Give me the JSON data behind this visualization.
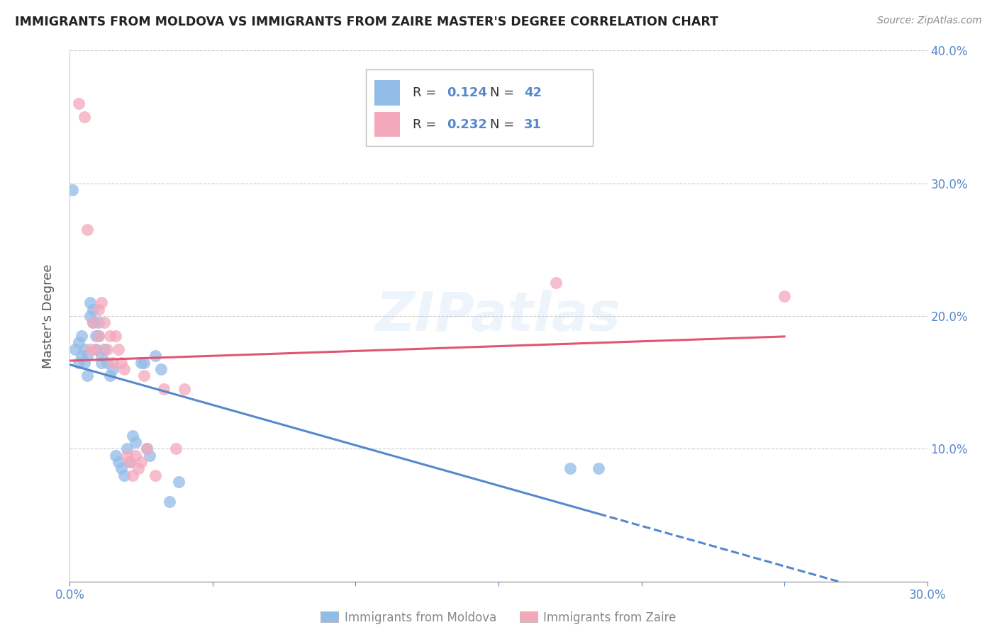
{
  "title": "IMMIGRANTS FROM MOLDOVA VS IMMIGRANTS FROM ZAIRE MASTER'S DEGREE CORRELATION CHART",
  "source": "Source: ZipAtlas.com",
  "ylabel": "Master's Degree",
  "xlabel_moldova": "Immigrants from Moldova",
  "xlabel_zaire": "Immigrants from Zaire",
  "xlim": [
    0.0,
    0.3
  ],
  "ylim": [
    0.0,
    0.4
  ],
  "xticks": [
    0.0,
    0.05,
    0.1,
    0.15,
    0.2,
    0.25,
    0.3
  ],
  "yticks": [
    0.0,
    0.1,
    0.2,
    0.3,
    0.4
  ],
  "ytick_labels": [
    "",
    "10.0%",
    "20.0%",
    "30.0%",
    "40.0%"
  ],
  "xtick_labels": [
    "0.0%",
    "",
    "",
    "",
    "",
    "",
    "30.0%"
  ],
  "R_moldova": 0.124,
  "N_moldova": 42,
  "R_zaire": 0.232,
  "N_zaire": 31,
  "color_moldova": "#92bce8",
  "color_zaire": "#f4a8bc",
  "line_color_moldova": "#5588cc",
  "line_color_zaire": "#e05575",
  "tick_color": "#5588cc",
  "grid_color": "#cccccc",
  "watermark": "ZIPatlas",
  "moldova_x": [
    0.001,
    0.002,
    0.003,
    0.003,
    0.004,
    0.004,
    0.005,
    0.005,
    0.006,
    0.006,
    0.007,
    0.007,
    0.008,
    0.008,
    0.009,
    0.009,
    0.01,
    0.01,
    0.011,
    0.011,
    0.012,
    0.013,
    0.014,
    0.015,
    0.016,
    0.017,
    0.018,
    0.019,
    0.02,
    0.021,
    0.022,
    0.023,
    0.025,
    0.026,
    0.027,
    0.028,
    0.03,
    0.032,
    0.035,
    0.038,
    0.175,
    0.185
  ],
  "moldova_y": [
    0.295,
    0.175,
    0.18,
    0.165,
    0.185,
    0.17,
    0.175,
    0.165,
    0.17,
    0.155,
    0.2,
    0.21,
    0.195,
    0.205,
    0.185,
    0.175,
    0.195,
    0.185,
    0.17,
    0.165,
    0.175,
    0.165,
    0.155,
    0.16,
    0.095,
    0.09,
    0.085,
    0.08,
    0.1,
    0.09,
    0.11,
    0.105,
    0.165,
    0.165,
    0.1,
    0.095,
    0.17,
    0.16,
    0.06,
    0.075,
    0.085,
    0.085
  ],
  "zaire_x": [
    0.003,
    0.005,
    0.006,
    0.007,
    0.008,
    0.009,
    0.01,
    0.01,
    0.011,
    0.012,
    0.013,
    0.014,
    0.015,
    0.016,
    0.017,
    0.018,
    0.019,
    0.02,
    0.021,
    0.022,
    0.023,
    0.024,
    0.025,
    0.026,
    0.027,
    0.03,
    0.033,
    0.037,
    0.04,
    0.17,
    0.25
  ],
  "zaire_y": [
    0.36,
    0.35,
    0.265,
    0.175,
    0.195,
    0.175,
    0.205,
    0.185,
    0.21,
    0.195,
    0.175,
    0.185,
    0.165,
    0.185,
    0.175,
    0.165,
    0.16,
    0.095,
    0.09,
    0.08,
    0.095,
    0.085,
    0.09,
    0.155,
    0.1,
    0.08,
    0.145,
    0.1,
    0.145,
    0.225,
    0.215
  ]
}
